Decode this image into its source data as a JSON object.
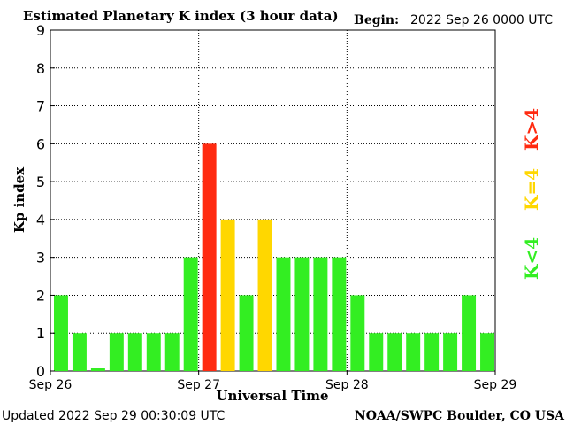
{
  "chart_data": {
    "type": "bar",
    "title": "Estimated Planetary K index (3 hour data)",
    "begin_label": "Begin:",
    "begin_value": "2022 Sep 26 0000 UTC",
    "xlabel": "Universal Time",
    "ylabel": "Kp index",
    "ylim": [
      0,
      9
    ],
    "yticks": [
      "0",
      "1",
      "2",
      "3",
      "4",
      "5",
      "6",
      "7",
      "8",
      "9"
    ],
    "xtick_labels": [
      "Sep 26",
      "Sep 27",
      "Sep 28",
      "Sep 29"
    ],
    "grid": true,
    "values": [
      2,
      1,
      0.07,
      1,
      1,
      1,
      1,
      3,
      6,
      4,
      2,
      4,
      3,
      3,
      3,
      3,
      2,
      1,
      1,
      1,
      1,
      1,
      2,
      1
    ],
    "legend": [
      {
        "label": "K<4",
        "color": "#33ee22"
      },
      {
        "label": "K=4",
        "color": "#ffd700"
      },
      {
        "label": "K>4",
        "color": "#ff2a10"
      }
    ],
    "colors": {
      "low": "#33ee22",
      "equal": "#ffd700",
      "high": "#ff2a10"
    }
  },
  "footer": {
    "updated": "Updated 2022 Sep 29 00:30:09 UTC",
    "source": "NOAA/SWPC Boulder, CO USA"
  }
}
